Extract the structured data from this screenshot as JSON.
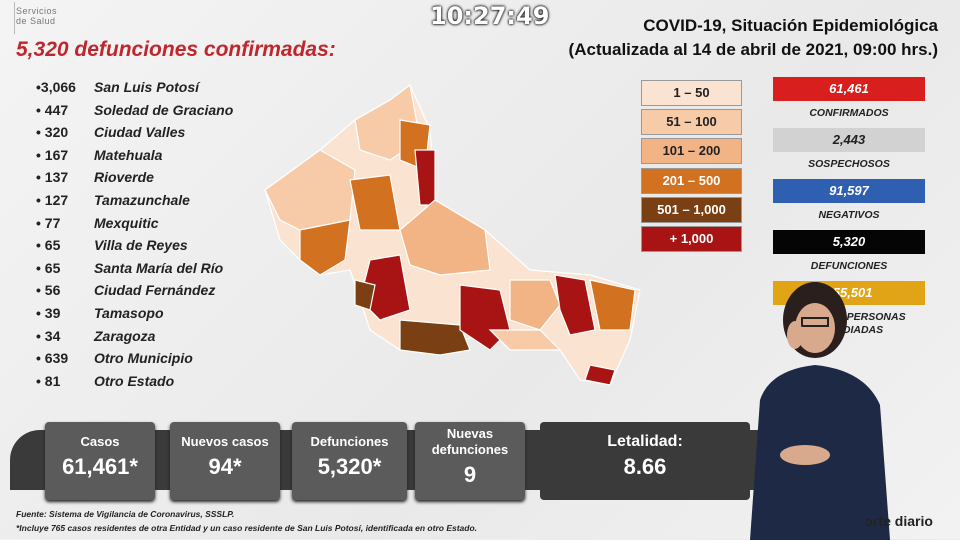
{
  "logo": {
    "line1": "Servicios",
    "line2": "de Salud"
  },
  "headline": "5,320 defunciones confirmadas:",
  "deaths_by_municipality": [
    {
      "count": "•3,066",
      "name": "San Luis Potosí"
    },
    {
      "count": "• 447",
      "name": "Soledad de Graciano"
    },
    {
      "count": "• 320",
      "name": "Ciudad Valles"
    },
    {
      "count": "• 167",
      "name": "Matehuala"
    },
    {
      "count": "• 137",
      "name": "Rioverde"
    },
    {
      "count": "• 127",
      "name": "Tamazunchale"
    },
    {
      "count": "• 77",
      "name": "Mexquitic"
    },
    {
      "count": "• 65",
      "name": "Villa de Reyes"
    },
    {
      "count": "• 65",
      "name": "Santa María del Río"
    },
    {
      "count": "• 56",
      "name": "Ciudad Fernández"
    },
    {
      "count": "• 39",
      "name": "Tamasopo"
    },
    {
      "count": "• 34",
      "name": "Zaragoza"
    },
    {
      "count": "• 639",
      "name": "Otro Municipio"
    },
    {
      "count": "• 81",
      "name": "Otro Estado"
    }
  ],
  "title": {
    "line1": "COVID-19, Situación Epidemiológica",
    "line2": "(Actualizada al 14 de abril de 2021, 09:00 hrs.)"
  },
  "clock": "10:27:49",
  "legend": [
    {
      "label": "1 – 50",
      "color": "#fbe3d2",
      "text": "#222"
    },
    {
      "label": "51 – 100",
      "color": "#f8cba8",
      "text": "#222"
    },
    {
      "label": "101 – 200",
      "color": "#f2b485",
      "text": "#222"
    },
    {
      "label": "201 – 500",
      "color": "#d2711f",
      "text": "#fff"
    },
    {
      "label": "501 – 1,000",
      "color": "#7a3f12",
      "text": "#fff"
    },
    {
      "label": "+ 1,000",
      "color": "#a81414",
      "text": "#fff"
    }
  ],
  "stats": [
    {
      "value": "61,461",
      "label": "CONFIRMADOS",
      "color": "#d91e1e",
      "text": "#fff"
    },
    {
      "value": "2,443",
      "label": "SOSPECHOSOS",
      "color": "#d2d2d2",
      "text": "#222"
    },
    {
      "value": "91,597",
      "label": "NEGATIVOS",
      "color": "#2f5fb0",
      "text": "#fff"
    },
    {
      "value": "5,320",
      "label": "DEFUNCIONES",
      "color": "#050505",
      "text": "#fff"
    },
    {
      "value": "155,501",
      "label": "TOTAL DE PERSONAS ESTUDIADAS",
      "color": "#e0a416",
      "text": "#fff"
    }
  ],
  "cards": [
    {
      "label": "Casos",
      "value": "61,461*"
    },
    {
      "label": "Nuevos casos",
      "value": "94*"
    },
    {
      "label": "Defunciones",
      "value": "5,320*"
    },
    {
      "label": "Nuevas defunciones",
      "value": "9"
    },
    {
      "label": "Letalidad:",
      "value": "8.66"
    }
  ],
  "footnotes": {
    "source": "Fuente: Sistema de Vigilancia de Coronavirus, SSSLP.",
    "note": "*Incluye 765 casos residentes de otra Entidad y un caso residente de San Luis Potosí, identificada en otro Estado."
  },
  "report_label": "Reporte diario"
}
